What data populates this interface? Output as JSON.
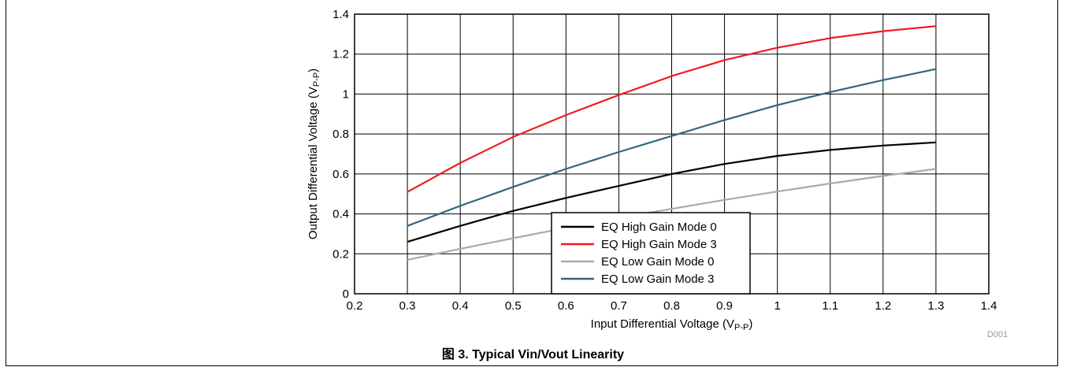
{
  "chart_data": {
    "type": "line",
    "xlabel": "Input Differential Voltage (V",
    "xlabel_sub": "P-P",
    "xlabel_end": ")",
    "ylabel": "Output Differential Voltage (V",
    "ylabel_sub": "P-P",
    "ylabel_end": ")",
    "xlim": [
      0.2,
      1.4
    ],
    "ylim": [
      0,
      1.4
    ],
    "x_ticks": [
      0.2,
      0.3,
      0.4,
      0.5,
      0.6,
      0.7,
      0.8,
      0.9,
      1,
      1.1,
      1.2,
      1.3,
      1.4
    ],
    "x_tick_labels": [
      "0.2",
      "0.3",
      "0.4",
      "0.5",
      "0.6",
      "0.7",
      "0.8",
      "0.9",
      "1",
      "1.1",
      "1.2",
      "1.3",
      "1.4"
    ],
    "y_ticks": [
      0,
      0.2,
      0.4,
      0.6,
      0.8,
      1,
      1.2,
      1.4
    ],
    "y_tick_labels": [
      "0",
      "0.2",
      "0.4",
      "0.6",
      "0.8",
      "1",
      "1.2",
      "1.4"
    ],
    "grid": true,
    "legend_position": "bottom-right",
    "x": [
      0.3,
      0.4,
      0.5,
      0.6,
      0.7,
      0.8,
      0.9,
      1.0,
      1.1,
      1.2,
      1.3
    ],
    "series": [
      {
        "name": "EQ High Gain Mode 0",
        "color": "#000000",
        "values": [
          0.26,
          0.34,
          0.415,
          0.48,
          0.54,
          0.6,
          0.65,
          0.69,
          0.72,
          0.742,
          0.758
        ]
      },
      {
        "name": "EQ High Gain Mode 3",
        "color": "#ee1c24",
        "values": [
          0.51,
          0.655,
          0.785,
          0.895,
          0.995,
          1.09,
          1.17,
          1.232,
          1.28,
          1.315,
          1.34
        ]
      },
      {
        "name": "EQ Low Gain Mode 0",
        "color": "#aaaaaa",
        "values": [
          0.17,
          0.225,
          0.278,
          0.33,
          0.38,
          0.425,
          0.47,
          0.512,
          0.552,
          0.59,
          0.625
        ]
      },
      {
        "name": "EQ Low Gain Mode 3",
        "color": "#336680",
        "values": [
          0.34,
          0.44,
          0.535,
          0.625,
          0.71,
          0.79,
          0.87,
          0.945,
          1.01,
          1.07,
          1.125
        ]
      }
    ],
    "code": "D001"
  },
  "caption": "图 3.  Typical Vin/Vout Linearity"
}
